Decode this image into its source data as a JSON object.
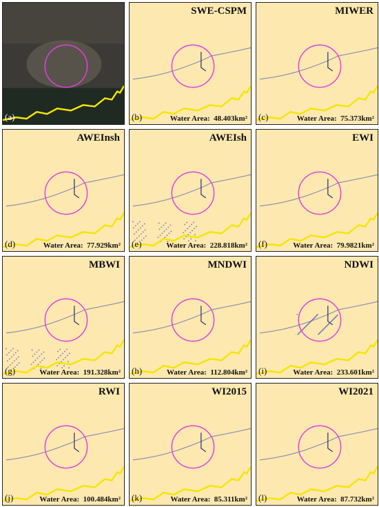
{
  "panels": [
    {
      "letter": "(a)"
    },
    {
      "letter": "(b)",
      "title": "SWE-CSPM",
      "area": "Water Area:  48.403km²"
    },
    {
      "letter": "(c)",
      "title": "MIWER",
      "area": "Water Area:  75.373km²"
    },
    {
      "letter": "(d)",
      "title": "AWEInsh",
      "area": "Water Area:  77.929km²"
    },
    {
      "letter": "(e)",
      "title": "AWEIsh",
      "area": "Water Area:  228.818km²"
    },
    {
      "letter": "(f)",
      "title": "EWI",
      "area": "Water Area:  79.9821km²"
    },
    {
      "letter": "(g)",
      "title": "MBWI",
      "area": "Water Area:  191.328km²"
    },
    {
      "letter": "(h)",
      "title": "MNDWI",
      "area": "Water Area:  112.804km²"
    },
    {
      "letter": "(i)",
      "title": "NDWI",
      "area": "Water Area:  233.601km²"
    },
    {
      "letter": "(j)",
      "title": "RWI",
      "area": "Water Area:  100.484km²"
    },
    {
      "letter": "(k)",
      "title": "WI2015",
      "area": "Water Area:  85.311km²"
    },
    {
      "letter": "(l)",
      "title": "WI2021",
      "area": "Water Area:  87.732km²"
    }
  ]
}
